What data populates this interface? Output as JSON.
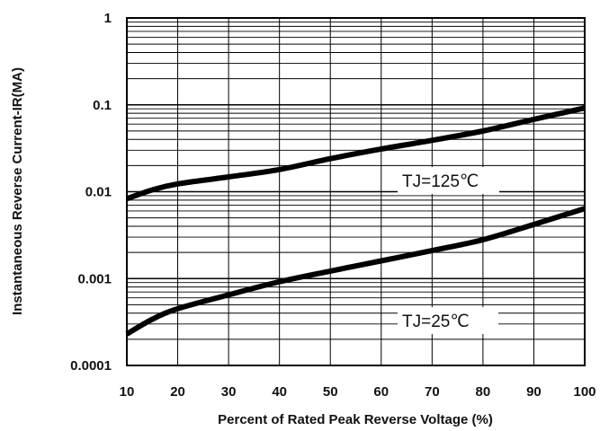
{
  "chart_data": {
    "type": "line",
    "xlabel": "Percent of Rated Peak Reverse Voltage (%)",
    "ylabel": "Instantaneous Reverse Current-IR(MA)",
    "x_ticks": [
      10,
      20,
      30,
      40,
      50,
      60,
      70,
      80,
      90,
      100
    ],
    "y_ticks": [
      0.0001,
      0.001,
      0.01,
      0.1,
      1
    ],
    "y_tick_labels": [
      "0.0001",
      "0.001",
      "0.01",
      "0.1",
      "1"
    ],
    "xlim": [
      10,
      100
    ],
    "ylim": [
      0.0001,
      1
    ],
    "yscale": "log",
    "grid": true,
    "series": [
      {
        "name": "TJ=125℃",
        "x": [
          10,
          15,
          20,
          30,
          40,
          50,
          60,
          70,
          80,
          90,
          100
        ],
        "y": [
          0.0083,
          0.0105,
          0.0123,
          0.0148,
          0.018,
          0.024,
          0.031,
          0.039,
          0.05,
          0.068,
          0.092
        ]
      },
      {
        "name": "TJ=25℃",
        "x": [
          10,
          15,
          20,
          30,
          40,
          50,
          60,
          70,
          80,
          90,
          100
        ],
        "y": [
          0.00023,
          0.00034,
          0.00045,
          0.00065,
          0.00092,
          0.00122,
          0.0016,
          0.0021,
          0.0028,
          0.0042,
          0.0064
        ]
      }
    ],
    "annotations": [
      "TJ=125℃",
      "TJ=25℃"
    ]
  }
}
